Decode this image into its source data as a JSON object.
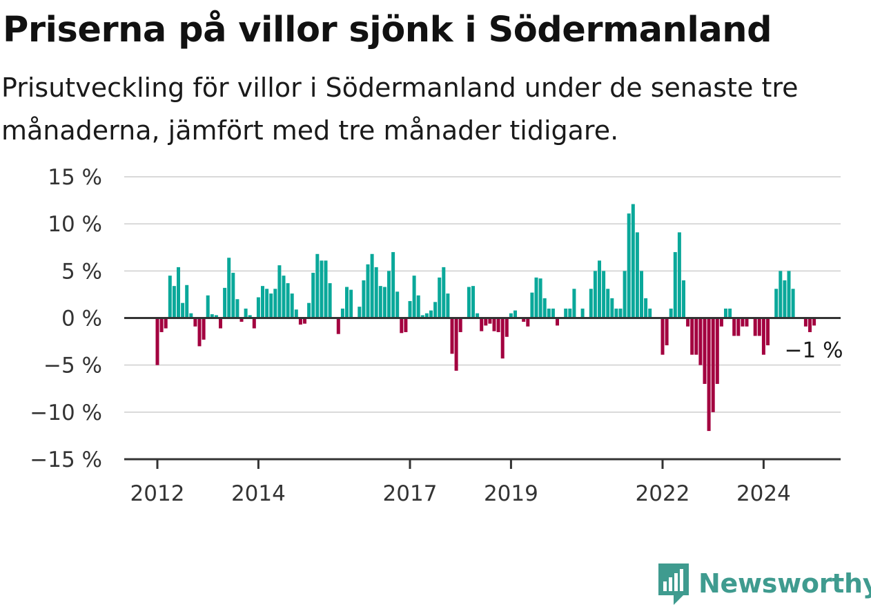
{
  "title": "Priserna på villor sjönk i Södermanland",
  "subtitle": "Prisutveckling för villor i Södermanland under de senaste tre månaderna, jämfört med tre månader tidigare.",
  "brand": {
    "name": "Newsworthy",
    "logo_icon": "bar-chart-logo-icon",
    "color": "#3f9b8f"
  },
  "chart_data": {
    "type": "bar",
    "title": "Priserna på villor sjönk i Södermanland",
    "xlabel": "",
    "ylabel": "",
    "ylim": [
      -15,
      15
    ],
    "yticks": [
      {
        "value": 15,
        "label": "15 %"
      },
      {
        "value": 10,
        "label": "10 %"
      },
      {
        "value": 5,
        "label": "5 %"
      },
      {
        "value": 0,
        "label": "0 %"
      },
      {
        "value": -5,
        "label": "−5 %"
      },
      {
        "value": -10,
        "label": "−10 %"
      },
      {
        "value": -15,
        "label": "−15 %"
      }
    ],
    "xticks": [
      {
        "label": "2012",
        "index": 0
      },
      {
        "label": "2014",
        "index": 24
      },
      {
        "label": "2017",
        "index": 60
      },
      {
        "label": "2019",
        "index": 84
      },
      {
        "label": "2022",
        "index": 120
      },
      {
        "label": "2024",
        "index": 144
      }
    ],
    "start": "2012-01",
    "frequency": "monthly",
    "colors": {
      "positive": "#0aa89a",
      "negative": "#a3003f",
      "grid": "#d9d9d9",
      "axis": "#333333"
    },
    "grid": true,
    "last_value_label": "−1 %",
    "values": [
      -5.0,
      -1.5,
      -1.1,
      4.5,
      3.4,
      5.4,
      1.6,
      3.5,
      0.5,
      -0.9,
      -3.0,
      -2.3,
      2.4,
      0.4,
      0.3,
      -1.1,
      3.2,
      6.4,
      4.8,
      2.0,
      -0.4,
      1.0,
      0.3,
      -1.1,
      2.2,
      3.4,
      3.1,
      2.6,
      3.1,
      5.6,
      4.5,
      3.7,
      2.6,
      0.9,
      -0.7,
      -0.6,
      1.6,
      4.8,
      6.8,
      6.1,
      6.1,
      3.7,
      0.0,
      -1.7,
      1.0,
      3.3,
      3.0,
      0.0,
      1.2,
      4.0,
      5.7,
      6.8,
      5.4,
      3.4,
      3.3,
      5.0,
      7.0,
      2.8,
      -1.6,
      -1.5,
      1.8,
      4.5,
      2.4,
      0.3,
      0.5,
      0.8,
      1.7,
      4.3,
      5.4,
      2.6,
      -3.8,
      -5.6,
      -1.5,
      0.0,
      3.3,
      3.4,
      0.5,
      -1.4,
      -0.8,
      -0.6,
      -1.4,
      -1.5,
      -4.3,
      -2.0,
      0.5,
      0.8,
      0.0,
      -0.4,
      -0.9,
      2.7,
      4.3,
      4.2,
      2.1,
      1.0,
      1.0,
      -0.8,
      0.0,
      1.0,
      1.0,
      3.1,
      0.0,
      1.0,
      0.0,
      3.1,
      5.0,
      6.1,
      5.0,
      3.1,
      2.1,
      1.0,
      1.0,
      5.0,
      11.1,
      12.1,
      9.1,
      5.0,
      2.1,
      1.0,
      0.0,
      0.0,
      -3.9,
      -2.9,
      1.0,
      7.0,
      9.1,
      4.0,
      -0.9,
      -3.9,
      -3.9,
      -5.0,
      -7.0,
      -12.0,
      -10.0,
      -7.0,
      -0.9,
      1.0,
      1.0,
      -1.9,
      -1.9,
      -0.9,
      -0.9,
      0.0,
      -1.9,
      -1.9,
      -3.9,
      -2.9,
      0.0,
      3.1,
      5.0,
      4.0,
      5.0,
      3.1,
      0.0,
      0.0,
      -0.9,
      -1.5,
      -0.8
    ]
  }
}
